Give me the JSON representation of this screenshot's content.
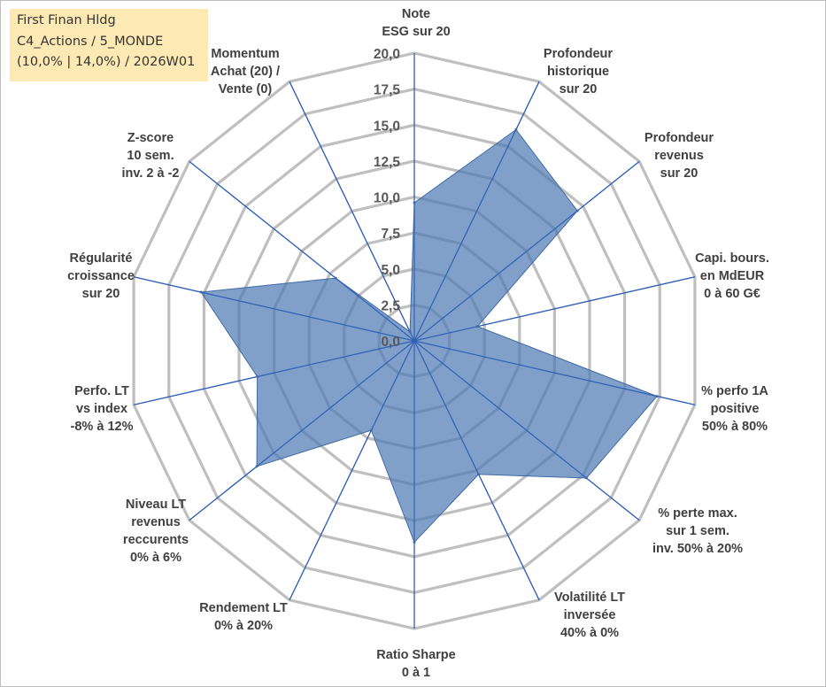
{
  "chart_data": {
    "type": "radar",
    "title_lines": [
      "First Finan Hldg",
      "C4_Actions / 5_MONDE",
      "(10,0% | 14,0%) / 2026W01"
    ],
    "rlim": [
      0,
      20
    ],
    "ticks": [
      "0,0",
      "2,5",
      "5,0",
      "7,5",
      "10,0",
      "12,5",
      "15,0",
      "17,5",
      "20,0"
    ],
    "tick_values": [
      0,
      2.5,
      5,
      7.5,
      10,
      12.5,
      15,
      17.5,
      20
    ],
    "grid": true,
    "axes": [
      {
        "label": [
          "Note",
          "ESG sur 20"
        ],
        "value": 9.6
      },
      {
        "label": [
          "Profondeur",
          "historique",
          "sur 20"
        ],
        "value": 16.3
      },
      {
        "label": [
          "Profondeur",
          "revenus",
          "sur 20"
        ],
        "value": 14.5
      },
      {
        "label": [
          "Capi. bours.",
          "en MdEUR",
          "0 à 60 G€"
        ],
        "value": 4.5
      },
      {
        "label": [
          "% perfo 1A",
          "positive",
          "50% à 80%"
        ],
        "value": 17.3
      },
      {
        "label": [
          "% perte max.",
          "sur 1 sem.",
          "inv. 50% à 20%"
        ],
        "value": 15.3
      },
      {
        "label": [
          "Volatilité LT",
          "inversée",
          "40% à 0%"
        ],
        "value": 10.3
      },
      {
        "label": [
          "Ratio Sharpe",
          "0 à 1"
        ],
        "value": 14.0
      },
      {
        "label": [
          "Rendement LT",
          "0% à 20%"
        ],
        "value": 6.9
      },
      {
        "label": [
          "Niveau LT",
          "revenus",
          "reccurents",
          "0% à 6%"
        ],
        "value": 14.0
      },
      {
        "label": [
          "Perfo. LT",
          "vs index",
          "-8% à 12%"
        ],
        "value": 11.2
      },
      {
        "label": [
          "Régularité",
          "croissance",
          "sur 20"
        ],
        "value": 15.2
      },
      {
        "label": [
          "Z-score",
          "10 sem.",
          "inv. 2 à -2"
        ],
        "value": 7.0
      },
      {
        "label": [
          "Momentum",
          "Achat (20) /",
          "Vente (0)"
        ],
        "value": 0.7
      }
    ],
    "colors": {
      "fill": "#4f7bb5",
      "axis": "#2e5fb5",
      "grid": "#bfbfbf"
    }
  }
}
